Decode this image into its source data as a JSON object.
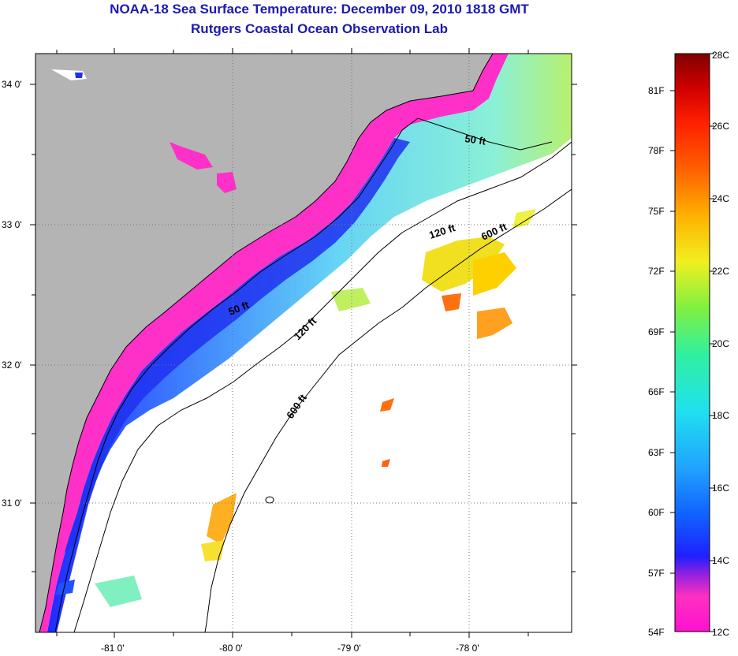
{
  "header": {
    "title": "NOAA-18 Sea Surface Temperature:  December 09, 2010 1818 GMT",
    "subtitle": "Rutgers Coastal Ocean Observation Lab"
  },
  "map": {
    "lat_labels": [
      "34 0'",
      "33 0'",
      "32 0'",
      "31 0'"
    ],
    "lon_labels": [
      "-81 0'",
      "-80 0'",
      "-79 0'",
      "-78 0'"
    ],
    "contours": [
      "50 ft",
      "50 ft",
      "120 ft",
      "120 ft",
      "600 ft",
      "600 ft"
    ]
  },
  "colorbar": {
    "fahrenheit": [
      "81F",
      "78F",
      "75F",
      "72F",
      "69F",
      "66F",
      "63F",
      "60F",
      "57F",
      "54F"
    ],
    "celsius": [
      "28C",
      "26C",
      "24C",
      "22C",
      "20C",
      "18C",
      "16C",
      "14C",
      "12C"
    ]
  },
  "colors": {
    "land": "#b4b4b4",
    "title": "#1a1ab0"
  }
}
